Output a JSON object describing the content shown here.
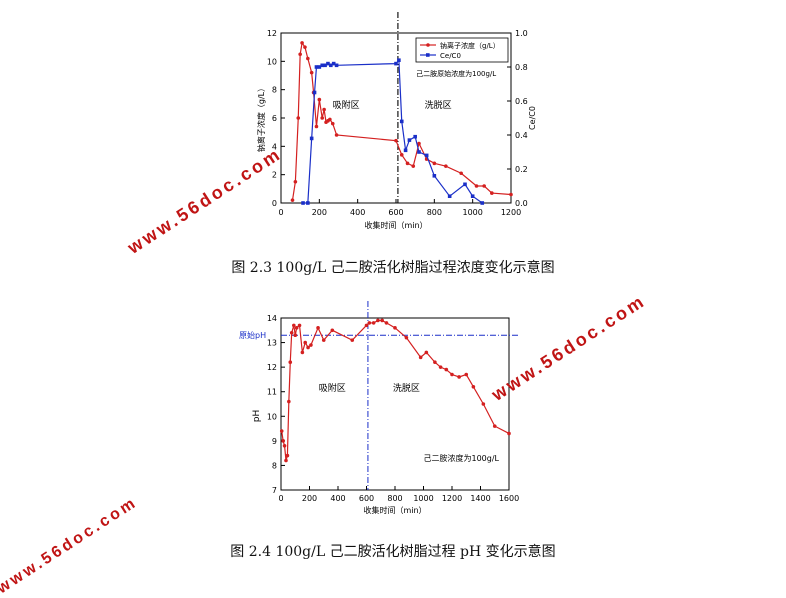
{
  "figure1": {
    "caption": "图 2.3 100g/L 己二胺活化树脂过程浓度变化示意图",
    "chart_data": {
      "type": "line",
      "xlabel": "收集时间（min）",
      "ylabel_left": "钠离子浓度（g/L）",
      "ylabel_right": "Ce/C0",
      "xlim": [
        0,
        1200
      ],
      "ylim_left": [
        0,
        12
      ],
      "ylim_right": [
        0,
        1.0
      ],
      "xticks": [
        0,
        200,
        400,
        600,
        800,
        1000,
        1200
      ],
      "yticks_left": [
        0,
        2,
        4,
        6,
        8,
        10,
        12
      ],
      "yticks_right": [
        0.0,
        0.2,
        0.4,
        0.6,
        0.8,
        1.0
      ],
      "grid": false,
      "legend_position": "top-right",
      "vline_x": 610,
      "annotations": [
        "吸附区",
        "洗脱区",
        "己二胺原始浓度为100g/L"
      ],
      "series": [
        {
          "name": "钠离子浓度（g/L）",
          "axis": "left",
          "color": "#d42020",
          "marker": "circle",
          "x": [
            60,
            75,
            90,
            100,
            110,
            125,
            140,
            160,
            170,
            185,
            200,
            215,
            225,
            235,
            245,
            255,
            270,
            290,
            600,
            630,
            660,
            690,
            720,
            760,
            800,
            860,
            940,
            1020,
            1060,
            1100,
            1200
          ],
          "y": [
            0.2,
            1.5,
            6,
            10.5,
            11.3,
            11,
            10.2,
            9.2,
            7.8,
            5.4,
            7.3,
            6,
            6.6,
            5.7,
            5.8,
            5.9,
            5.6,
            4.8,
            4.4,
            3.4,
            2.8,
            2.6,
            4.2,
            3.1,
            2.8,
            2.6,
            2.1,
            1.2,
            1.2,
            0.7,
            0.6
          ]
        },
        {
          "name": "Ce/C0",
          "axis": "right",
          "color": "#1a2fc8",
          "marker": "square",
          "x": [
            115,
            140,
            160,
            175,
            185,
            200,
            215,
            230,
            245,
            260,
            275,
            290,
            600,
            615,
            630,
            650,
            670,
            700,
            720,
            760,
            800,
            880,
            960,
            1000,
            1050
          ],
          "y": [
            0.0,
            0.0,
            0.38,
            0.65,
            0.8,
            0.8,
            0.81,
            0.81,
            0.82,
            0.81,
            0.82,
            0.81,
            0.82,
            0.84,
            0.48,
            0.31,
            0.37,
            0.39,
            0.3,
            0.28,
            0.16,
            0.04,
            0.11,
            0.04,
            0.0
          ]
        }
      ]
    }
  },
  "figure2": {
    "caption": "图 2.4 100g/L 己二胺活化树脂过程 pH 变化示意图",
    "chart_data": {
      "type": "line",
      "xlabel": "收集时间（min）",
      "ylabel": "pH",
      "xlim": [
        0,
        1600
      ],
      "ylim": [
        7,
        14
      ],
      "xticks": [
        0,
        200,
        400,
        600,
        800,
        1000,
        1200,
        1400,
        1600
      ],
      "yticks": [
        7,
        8,
        9,
        10,
        11,
        12,
        13,
        14
      ],
      "grid": false,
      "vline_x": 610,
      "hline_y": 13.3,
      "hline_label": "原始pH",
      "annotations": [
        "吸附区",
        "洗脱区",
        "己二胺浓度为100g/L"
      ],
      "series": [
        {
          "color": "#d42020",
          "marker": "circle",
          "x": [
            5,
            15,
            25,
            35,
            45,
            55,
            65,
            75,
            90,
            100,
            110,
            130,
            150,
            170,
            190,
            210,
            260,
            300,
            360,
            500,
            600,
            620,
            650,
            680,
            710,
            740,
            800,
            880,
            980,
            1020,
            1080,
            1120,
            1160,
            1200,
            1250,
            1300,
            1350,
            1420,
            1500,
            1600
          ],
          "y": [
            9.4,
            9.0,
            8.8,
            8.2,
            8.4,
            10.6,
            12.2,
            13.4,
            13.7,
            13.3,
            13.6,
            13.7,
            12.6,
            13.0,
            12.8,
            12.9,
            13.6,
            13.1,
            13.5,
            13.1,
            13.7,
            13.8,
            13.8,
            13.9,
            13.9,
            13.8,
            13.6,
            13.2,
            12.4,
            12.6,
            12.2,
            12.0,
            11.9,
            11.7,
            11.6,
            11.7,
            11.2,
            10.5,
            9.6,
            9.3
          ]
        }
      ]
    }
  },
  "watermarks": [
    "www.56doc.com",
    "www.56doc.com",
    "www.56doc.com"
  ]
}
